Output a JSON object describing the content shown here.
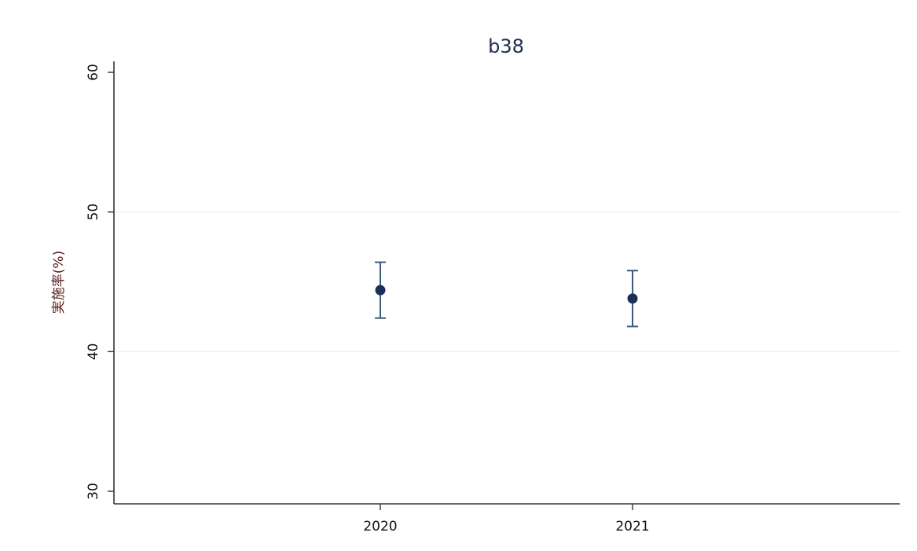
{
  "chart_data": {
    "type": "scatter",
    "title": "b38",
    "xlabel": "",
    "ylabel": "実施率(%)",
    "x_categories": [
      "2020",
      "2021"
    ],
    "xlim": [
      2019,
      2022
    ],
    "ylim": [
      30,
      60
    ],
    "y_ticks": [
      30,
      40,
      50,
      60
    ],
    "y_tick_labels": [
      "30",
      "40",
      "50",
      "60"
    ],
    "x_ticks": [
      2020,
      2021
    ],
    "x_tick_labels": [
      "2020",
      "2021"
    ],
    "gridlines_y": [
      40,
      50
    ],
    "grid": true,
    "series": [
      {
        "points": [
          {
            "x": 2020,
            "y": 44.4,
            "lower": 42.4,
            "upper": 46.4
          },
          {
            "x": 2021,
            "y": 43.8,
            "lower": 41.8,
            "upper": 45.8
          }
        ]
      }
    ],
    "colors": {
      "marker": "#1a2f5a",
      "errorbar": "#3a5a80",
      "axis": "#333333",
      "grid": "#e6eef3",
      "title": "#1f2d4d",
      "ylabel": "#5a1a1a"
    }
  }
}
